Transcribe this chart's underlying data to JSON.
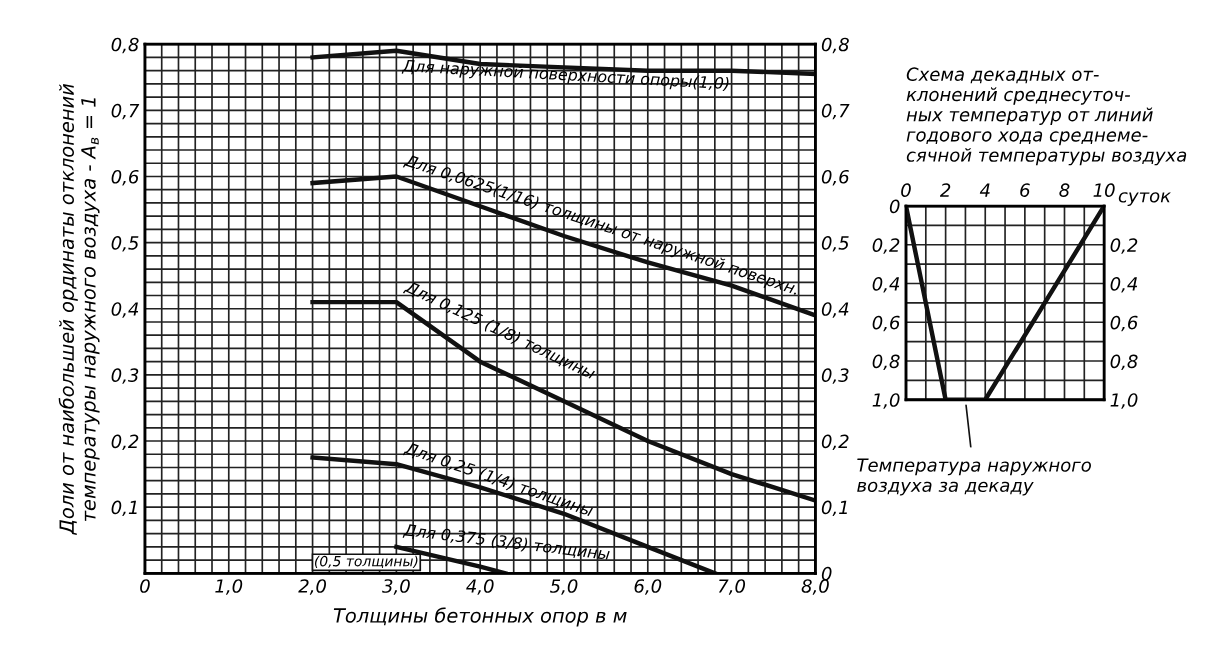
{
  "chart_data": [
    {
      "type": "line",
      "xlabel": "Толщины бетонных опор в м",
      "ylabel": "Доли от наибольшей ординаты отклонений\nтемпературы наружного воздуха - A$_{в}$ = 1",
      "x": [
        2,
        3,
        4,
        5,
        6,
        7,
        8
      ],
      "series": [
        {
          "name": "Для наружной поверхности опоры(1,0)",
          "color": "#111111",
          "values": [
            0.78,
            0.79,
            0.77,
            0.765,
            0.76,
            0.76,
            0.755
          ]
        },
        {
          "name": "Для 0,0625(1/16) толщины от наружной поверхн.",
          "color": "#111111",
          "values": [
            0.59,
            0.6,
            0.555,
            0.51,
            0.47,
            0.435,
            0.39
          ]
        },
        {
          "name": "Для 0,125 (1/8) толщины",
          "color": "#111111",
          "values": [
            0.41,
            0.41,
            0.32,
            0.26,
            0.2,
            0.15,
            0.11
          ]
        },
        {
          "name": "Для 0,25 (1/4) толщины",
          "color": "#111111",
          "x": [
            2,
            3,
            4,
            5,
            6,
            6.8
          ],
          "values": [
            0.175,
            0.165,
            0.13,
            0.09,
            0.04,
            0.0
          ]
        },
        {
          "name": "Для 0,375 (3/8) толщины",
          "color": "#111111",
          "x": [
            3,
            4,
            4.3
          ],
          "values": [
            0.04,
            0.01,
            0.0
          ]
        }
      ],
      "annotations": [
        "(0,5 толщины)"
      ],
      "xlim": [
        0,
        8
      ],
      "xticks": [
        0,
        {
          "value": 1,
          "label": "1,0"
        },
        {
          "value": 2,
          "label": "2,0"
        },
        {
          "value": 3,
          "label": "3,0"
        },
        {
          "value": 4,
          "label": "4,0"
        },
        {
          "value": 5,
          "label": "5,0"
        },
        {
          "value": 6,
          "label": "6,0"
        },
        {
          "value": 7,
          "label": "7,0"
        },
        {
          "value": 8,
          "label": "8,0"
        }
      ],
      "ylim": [
        0,
        0.8
      ],
      "yticks": [
        {
          "value": 0.1,
          "label": "0,1"
        },
        {
          "value": 0.2,
          "label": "0,2"
        },
        {
          "value": 0.3,
          "label": "0,3"
        },
        {
          "value": 0.4,
          "label": "0,4"
        },
        {
          "value": 0.5,
          "label": "0,5"
        },
        {
          "value": 0.6,
          "label": "0,6"
        },
        {
          "value": 0.7,
          "label": "0,7"
        },
        {
          "value": 0.8,
          "label": "0,8"
        }
      ],
      "y2lim": [
        0,
        0.8
      ],
      "y2ticks": [
        0,
        {
          "value": 0.1,
          "label": "0,1"
        },
        {
          "value": 0.2,
          "label": "0,2"
        },
        {
          "value": 0.3,
          "label": "0,3"
        },
        {
          "value": 0.4,
          "label": "0,4"
        },
        {
          "value": 0.5,
          "label": "0,5"
        },
        {
          "value": 0.6,
          "label": "0,6"
        },
        {
          "value": 0.7,
          "label": "0,7"
        },
        {
          "value": 0.8,
          "label": "0,8"
        }
      ],
      "grid": true,
      "legend": false
    },
    {
      "type": "line",
      "title": "Схема декадных от-\nклонений среднесуточ-\nных температур от линий\nгодового хода среднеме-\nсячной температуры воздуха",
      "x": [
        0,
        2,
        4,
        10
      ],
      "series": [
        {
          "color": "#111111",
          "values": [
            0,
            1.0,
            1.0,
            0
          ]
        }
      ],
      "annotations": [
        "Температура наружного\nвоздуха за декаду"
      ],
      "xlabel": "суток",
      "xlim": [
        0,
        10
      ],
      "xticks": [
        0,
        2,
        4,
        6,
        8,
        10
      ],
      "ylim": [
        1.0,
        0
      ],
      "yticks": [
        0,
        {
          "value": 0.2,
          "label": "0,2"
        },
        {
          "value": 0.4,
          "label": "0,4"
        },
        {
          "value": 0.6,
          "label": "0,6"
        },
        {
          "value": 0.8,
          "label": "0,8"
        },
        {
          "value": 1.0,
          "label": "1,0"
        }
      ],
      "y2lim": [
        1.0,
        0
      ],
      "y2ticks": [
        {
          "value": 0.2,
          "label": "0,2"
        },
        {
          "value": 0.4,
          "label": "0,4"
        },
        {
          "value": 0.6,
          "label": "0,6"
        },
        {
          "value": 0.8,
          "label": "0,8"
        },
        {
          "value": 1.0,
          "label": "1,0"
        }
      ],
      "grid": true,
      "legend": false
    }
  ]
}
